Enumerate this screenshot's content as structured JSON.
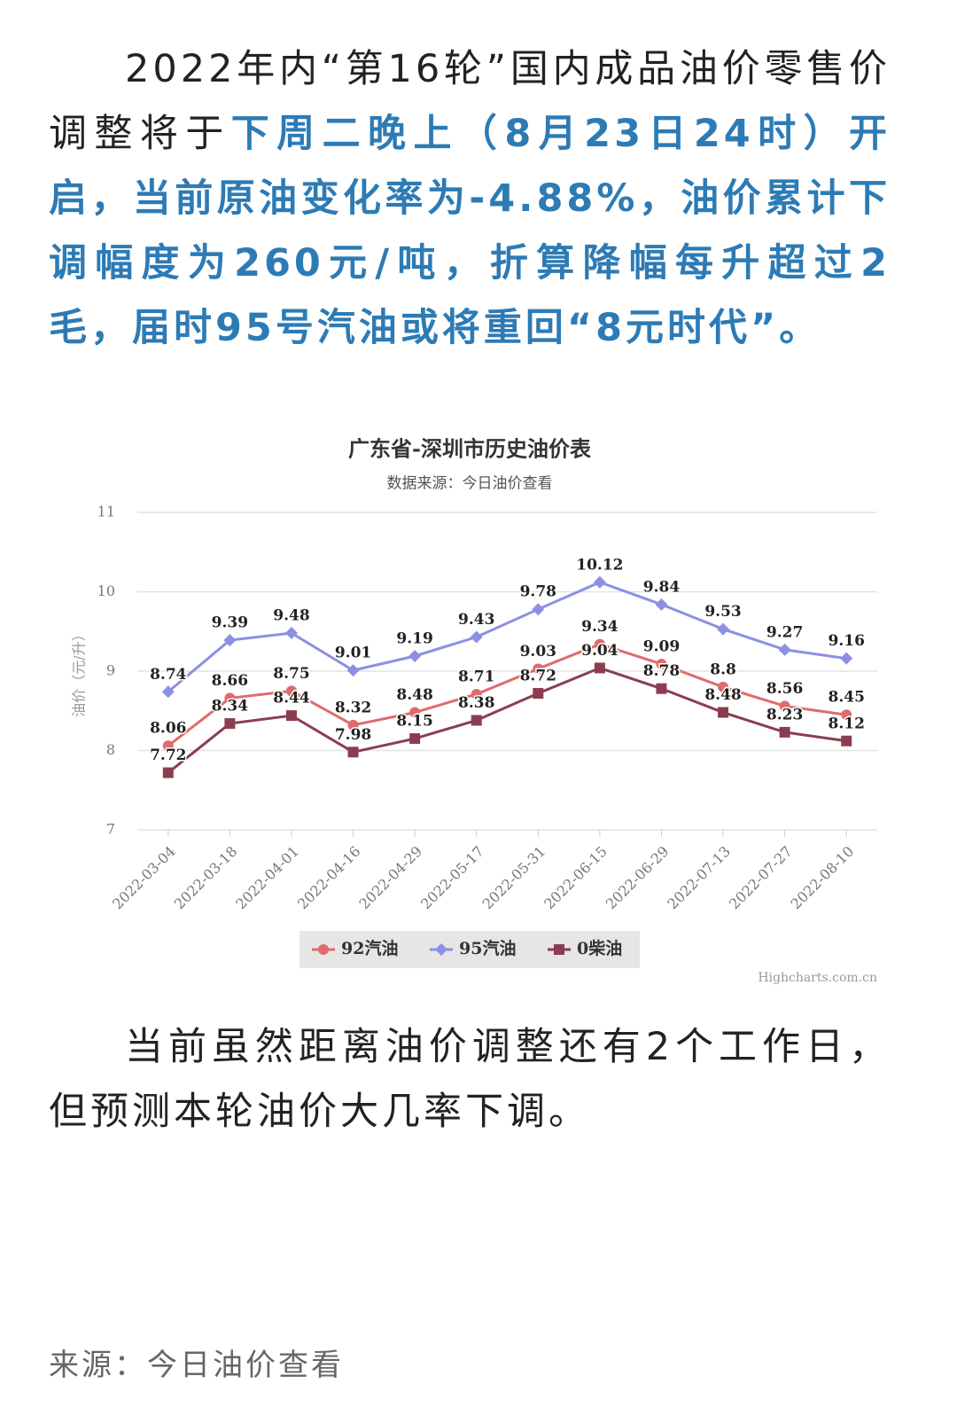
{
  "intro": {
    "text": "2022年内“第16轮”国内成品油价零售价调整将于",
    "highlight": "下周二晚上（8月23日24时）开启，当前原油变化率为-4.88%，油价累计下调幅度为260元/吨，折算降幅每升超过2毛，届时95号汽油或将重回“8元时代”。"
  },
  "chart_data": {
    "type": "line",
    "title": "广东省-深圳市历史油价表",
    "subtitle": "数据来源：今日油价查看",
    "y_label": "油价（元/升）",
    "credits": "Highcharts.com.cn",
    "categories": [
      "2022-03-04",
      "2022-03-18",
      "2022-04-01",
      "2022-04-16",
      "2022-04-29",
      "2022-05-17",
      "2022-05-31",
      "2022-06-15",
      "2022-06-29",
      "2022-07-13",
      "2022-07-27",
      "2022-08-10"
    ],
    "series": [
      {
        "name": "92汽油",
        "color": "#e06b6b",
        "marker": "circle",
        "values": [
          8.06,
          8.66,
          8.75,
          8.32,
          8.48,
          8.71,
          9.03,
          9.34,
          9.09,
          8.8,
          8.56,
          8.45
        ]
      },
      {
        "name": "95汽油",
        "color": "#8c90e3",
        "marker": "diamond",
        "values": [
          8.74,
          9.39,
          9.48,
          9.01,
          9.19,
          9.43,
          9.78,
          10.12,
          9.84,
          9.53,
          9.27,
          9.16
        ]
      },
      {
        "name": "0柴油",
        "color": "#8b3d50",
        "marker": "square",
        "values": [
          7.72,
          8.34,
          8.44,
          7.98,
          8.15,
          8.38,
          8.72,
          9.04,
          8.78,
          8.48,
          8.23,
          8.12
        ]
      }
    ],
    "ylim": [
      7,
      11
    ],
    "yticks": [
      7,
      8,
      9,
      10,
      11
    ],
    "grid": true,
    "data_labels": true
  },
  "body": "当前虽然距离油价调整还有2个工作日，但预测本轮油价大几率下调。",
  "source": "来源：今日油价查看"
}
